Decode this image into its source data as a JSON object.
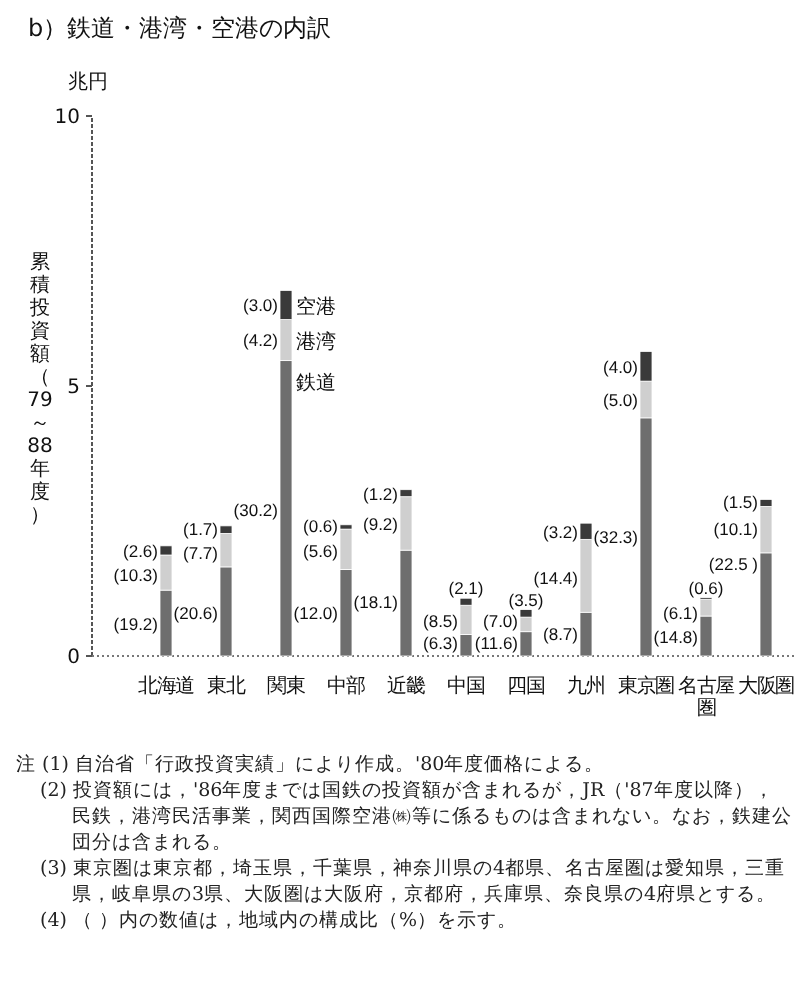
{
  "chart_data": {
    "type": "bar",
    "stacked": true,
    "title": "b）鉄道・港湾・空港の内訳",
    "ylabel": "累積投資額（79～88年度）",
    "categories": [
      "北海道",
      "東北",
      "関東",
      "中部",
      "近畿",
      "中国",
      "四国",
      "九州",
      "東京圏",
      "名古屋圏",
      "大阪圏"
    ],
    "series": [
      {
        "name": "鉄道",
        "color": "#6e6e6e",
        "values": [
          1.22,
          1.65,
          5.47,
          1.6,
          1.96,
          0.4,
          0.45,
          0.81,
          4.41,
          0.74,
          1.91
        ]
      },
      {
        "name": "港湾",
        "color": "#cfcfcf",
        "values": [
          0.65,
          0.62,
          0.76,
          0.75,
          0.99,
          0.54,
          0.27,
          1.35,
          0.68,
          0.31,
          0.86
        ]
      },
      {
        "name": "空港",
        "color": "#3a3a3a",
        "values": [
          0.17,
          0.14,
          0.54,
          0.08,
          0.13,
          0.13,
          0.14,
          0.3,
          0.55,
          0.03,
          0.13
        ]
      }
    ],
    "ylim": [
      0,
      10
    ],
    "yticks": [
      0,
      5,
      10
    ],
    "grid": false,
    "annotations": [
      "兆円",
      "注 (1) 自治省「行政投資実績」により作成。'80年度価格による。",
      "(2) 投資額には，'86年度までは国鉄の投資額が含まれるが，JR（'87年度以降），民鉄，港湾民活事業，関西国際空港㈱等に係るものは含まれない。なお，鉄建公団分は含まれる。",
      "(3) 東京圏は東京都，埼玉県，千葉県，神奈川県の4都県、名古屋圏は愛知県，三重県，岐阜県の3県、大阪圏は大阪府，京都府，兵庫県、奈良県の4府県とする。",
      "(4) （ ）内の数値は，地域内の構成比（%）を示す。",
      {
        "text": "(19.2)",
        "x": "北海道",
        "y": 0.6
      },
      {
        "text": "(10.3)",
        "x": "北海道",
        "y": 1.5
      },
      {
        "text": "(2.6)",
        "x": "北海道",
        "y": 1.95
      },
      {
        "text": "(20.6)",
        "x": "東北",
        "y": 0.8
      },
      {
        "text": "(7.7)",
        "x": "東北",
        "y": 1.9
      },
      {
        "text": "(1.7)",
        "x": "東北",
        "y": 2.35
      },
      {
        "text": "(30.2)",
        "x": "関東",
        "y": 2.7
      },
      {
        "text": "(4.2)",
        "x": "関東",
        "y": 5.85
      },
      {
        "text": "(3.0)",
        "x": "関東",
        "y": 6.5
      },
      {
        "text": "(12.0)",
        "x": "中部",
        "y": 0.8
      },
      {
        "text": "(5.6)",
        "x": "中部",
        "y": 1.95
      },
      {
        "text": "(0.6)",
        "x": "中部",
        "y": 2.4
      },
      {
        "text": "(18.1)",
        "x": "近畿",
        "y": 1.0
      },
      {
        "text": "(9.2)",
        "x": "近畿",
        "y": 2.45
      },
      {
        "text": "(1.2)",
        "x": "近畿",
        "y": 3.0
      },
      {
        "text": "(6.3)",
        "x": "中国",
        "y": 0.25
      },
      {
        "text": "(8.5)",
        "x": "中国",
        "y": 0.65
      },
      {
        "text": "(2.1)",
        "x": "中国",
        "y": 1.07
      },
      {
        "text": "(11.6)",
        "x": "四国",
        "y": 0.25
      },
      {
        "text": "(7.0)",
        "x": "四国",
        "y": 0.65
      },
      {
        "text": "(3.5)",
        "x": "四国",
        "y": 0.86
      },
      {
        "text": "(8.7)",
        "x": "九州",
        "y": 0.4
      },
      {
        "text": "(14.4)",
        "x": "九州",
        "y": 1.45
      },
      {
        "text": "(3.2)",
        "x": "九州",
        "y": 2.3
      },
      {
        "text": "(32.3)",
        "x": "東京圏",
        "y": 2.2
      },
      {
        "text": "(5.0)",
        "x": "東京圏",
        "y": 4.75
      },
      {
        "text": "(4.0)",
        "x": "東京圏",
        "y": 5.35
      },
      {
        "text": "(14.8)",
        "x": "名古屋圏",
        "y": 0.35
      },
      {
        "text": "(6.1)",
        "x": "名古屋圏",
        "y": 0.8
      },
      {
        "text": "(0.6)",
        "x": "名古屋圏",
        "y": 1.08
      },
      {
        "text": "(22.5 )",
        "x": "大阪圏",
        "y": 1.7
      },
      {
        "text": "(10.1)",
        "x": "大阪圏",
        "y": 2.35
      },
      {
        "text": "(1.5)",
        "x": "大阪圏",
        "y": 2.85
      }
    ]
  }
}
